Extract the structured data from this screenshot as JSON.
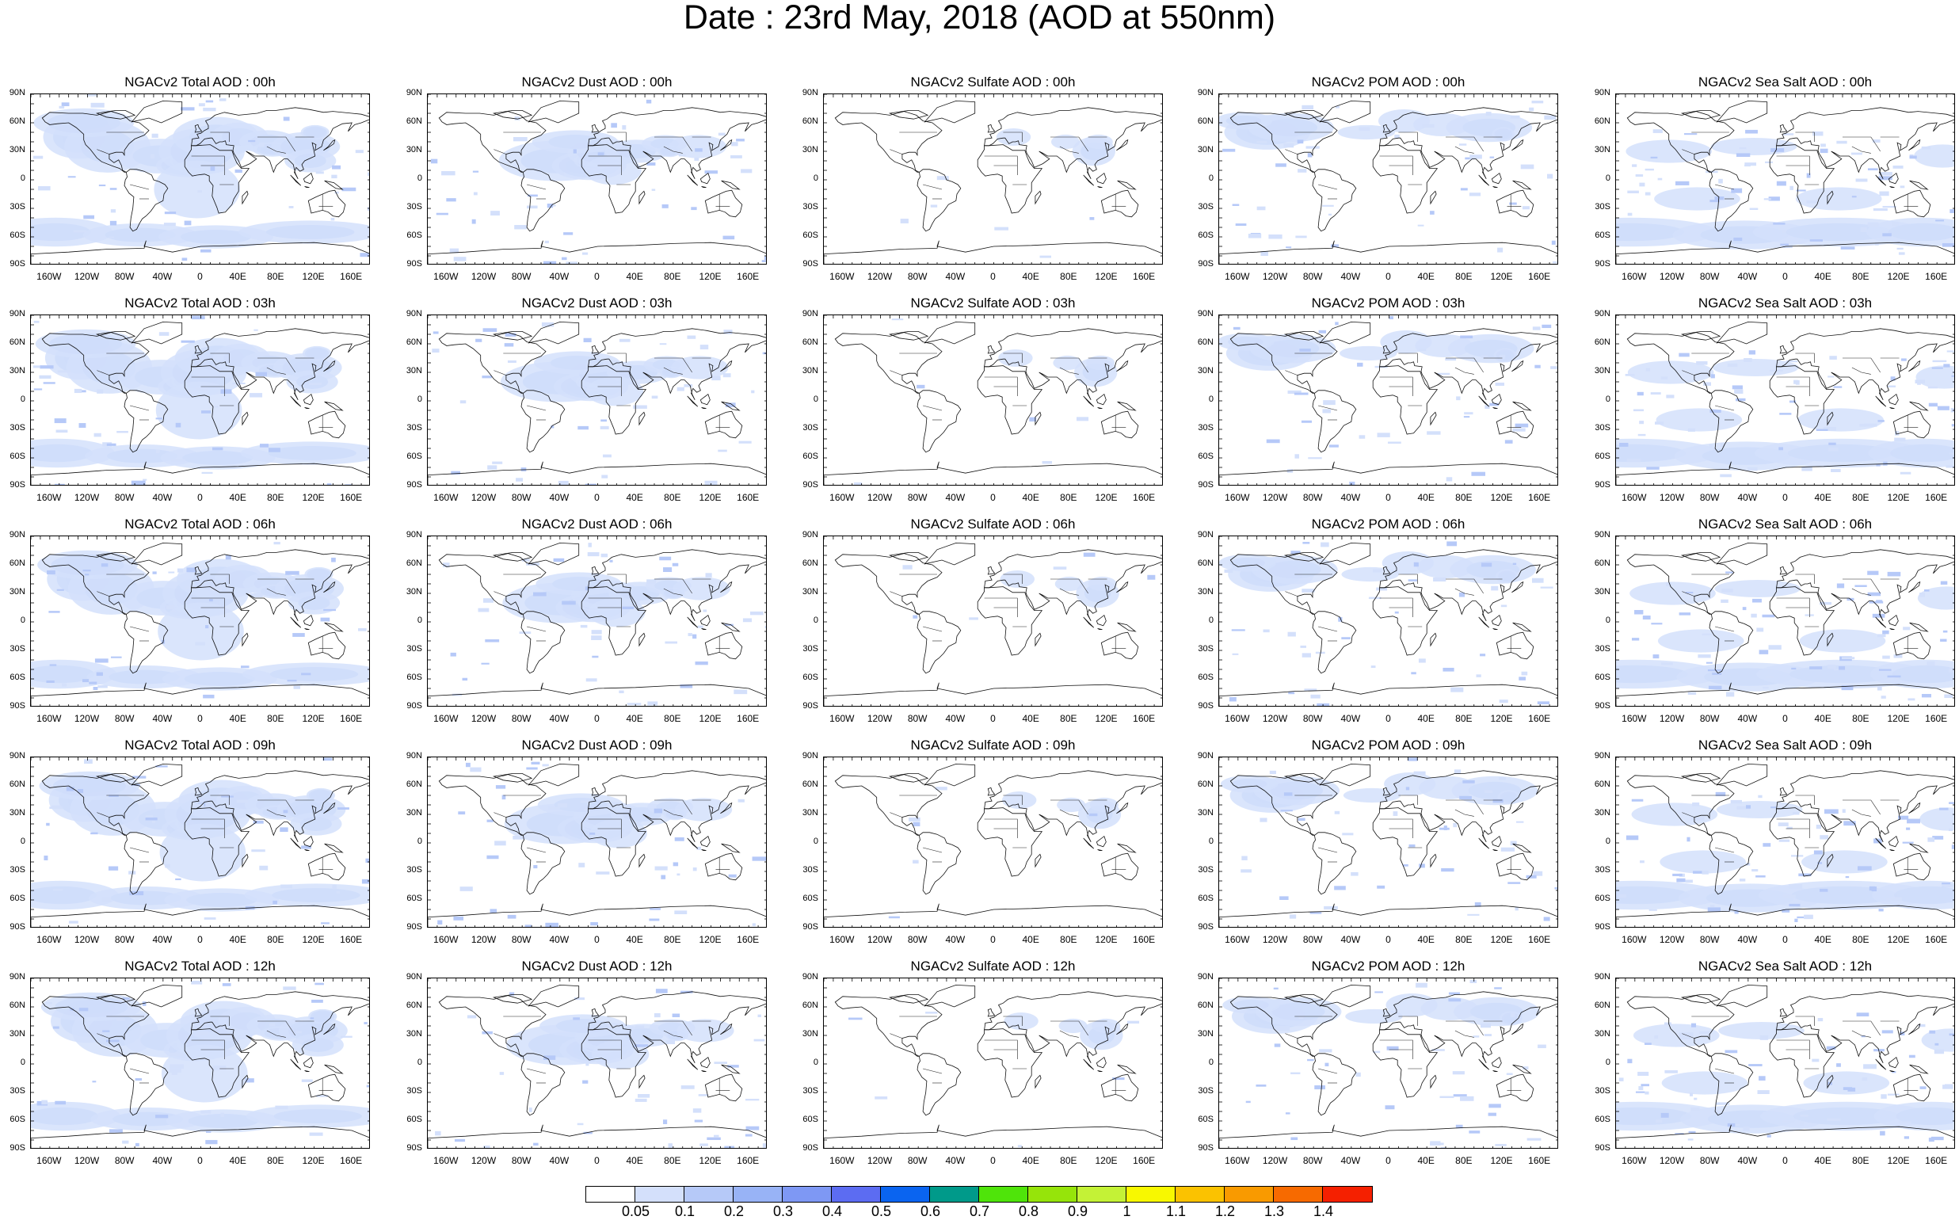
{
  "title": "Date : 23rd May, 2018 (AOD at 550nm)",
  "lat_ticks": [
    "90N",
    "60N",
    "30N",
    "0",
    "30S",
    "60S",
    "90S"
  ],
  "lon_ticks": [
    "160W",
    "120W",
    "80W",
    "40W",
    "0",
    "40E",
    "80E",
    "120E",
    "160E"
  ],
  "rows": [
    {
      "hour": "00h",
      "titles": [
        "NGACv2 Total AOD : 00h",
        "NGACv2 Dust AOD : 00h",
        "NGACv2 Sulfate AOD : 00h",
        "NGACv2 POM AOD : 00h",
        "NGACv2 Sea Salt AOD : 00h"
      ]
    },
    {
      "hour": "03h",
      "titles": [
        "NGACv2 Total AOD : 03h",
        "NGACv2 Dust AOD : 03h",
        "NGACv2 Sulfate AOD : 03h",
        "NGACv2 POM AOD : 03h",
        "NGACv2 Sea Salt AOD : 03h"
      ]
    },
    {
      "hour": "06h",
      "titles": [
        "NGACv2 Total AOD : 06h",
        "NGACv2 Dust AOD : 06h",
        "NGACv2 Sulfate AOD : 06h",
        "NGACv2 POM AOD : 06h",
        "NGACv2 Sea Salt AOD : 06h"
      ]
    },
    {
      "hour": "09h",
      "titles": [
        "NGACv2 Total AOD : 09h",
        "NGACv2 Dust AOD : 09h",
        "NGACv2 Sulfate AOD : 09h",
        "NGACv2 POM AOD : 09h",
        "NGACv2 Sea Salt  AOD : 09h"
      ]
    },
    {
      "hour": "12h",
      "titles": [
        "NGACv2 Total AOD  : 12h",
        "NGACv2 Dust AOD : 12h",
        "NGACv2 Sulfate AOD : 12h",
        "NGACv2 POM  AOD : 12h",
        "NGACv2 Sea Salt AOD : 12h"
      ]
    }
  ],
  "colorbar": {
    "labels": [
      "0.05",
      "0.1",
      "0.2",
      "0.3",
      "0.4",
      "0.5",
      "0.6",
      "0.7",
      "0.8",
      "0.9",
      "1",
      "1.1",
      "1.2",
      "1.3",
      "1.4"
    ],
    "colors": [
      "#ffffff",
      "#d4e0fb",
      "#b6c9f8",
      "#98b3f6",
      "#7e98f4",
      "#5c6cf2",
      "#0a64f0",
      "#009a8a",
      "#4fe40a",
      "#96e40a",
      "#c4f236",
      "#f8f800",
      "#fbc200",
      "#f99a00",
      "#f76a00",
      "#f52000"
    ]
  },
  "chart_data": {
    "type": "map-panels",
    "quantity": "AOD at 550nm",
    "lat_range": [
      -90,
      90
    ],
    "lon_range": [
      -180,
      180
    ],
    "contour_levels": [
      0.05,
      0.1,
      0.2,
      0.3,
      0.4,
      0.5,
      0.6,
      0.7,
      0.8,
      0.9,
      1,
      1.1,
      1.2,
      1.3,
      1.4
    ]
  }
}
